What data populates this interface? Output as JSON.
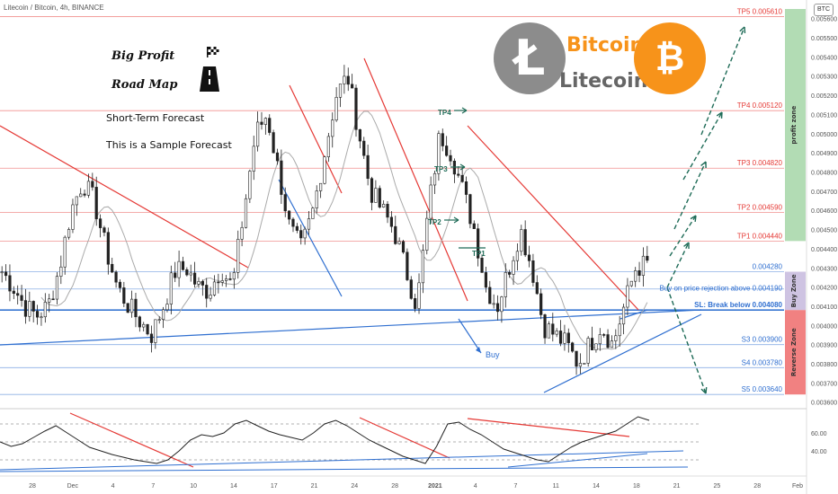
{
  "header": {
    "symbol_line": "Litecoin / Bitcoin, 4h, BINANCE",
    "badge": "BTC"
  },
  "callouts": {
    "title1": "Big Profit",
    "title2": "Road Map",
    "forecast": "Short-Term Forecast",
    "sample": "This is a Sample Forecast"
  },
  "brands": {
    "bitcoin": "Bitcoin",
    "litecoin": "Litecoin",
    "ltc_symbol": "Ł",
    "btc_symbol": "₿"
  },
  "colors": {
    "up": "#2a2a2a",
    "down": "#2a2a2a",
    "trend_red": "#e53935",
    "trend_blue": "#2f6fd0",
    "target_green": "#1e6b57",
    "profit_zone": "#a5d6a7",
    "buy_zone": "#c5b8dd",
    "reverse_zone": "#ef6b6b",
    "ma": "#aaaaaa"
  },
  "chart_data": [
    {
      "type": "candlestick",
      "title": "Litecoin / Bitcoin, 4h, BINANCE",
      "y_axis_ticks": [
        "0.005600",
        "0.005500",
        "0.005400",
        "0.005300",
        "0.005200",
        "0.005100",
        "0.005000",
        "0.004900",
        "0.004800",
        "0.004700",
        "0.004600",
        "0.004500",
        "0.004400",
        "0.004300",
        "0.004200",
        "0.004100",
        "0.004000",
        "0.003900",
        "0.003800",
        "0.003700",
        "0.003600"
      ],
      "ylim": [
        0.00358,
        0.00565
      ],
      "x_axis_ticks": [
        "28",
        "Dec",
        "4",
        "7",
        "10",
        "14",
        "17",
        "21",
        "24",
        "28",
        "2021",
        "4",
        "7",
        "11",
        "14",
        "18",
        "21",
        "25",
        "28",
        "Feb"
      ],
      "levels": [
        {
          "label": "TP5 0.005610",
          "value": 0.00561,
          "color": "#e53935"
        },
        {
          "label": "TP4 0.005120",
          "value": 0.00512,
          "color": "#e53935"
        },
        {
          "label": "TP3 0.004820",
          "value": 0.00482,
          "color": "#e53935"
        },
        {
          "label": "TP2 0.004590",
          "value": 0.00459,
          "color": "#e53935"
        },
        {
          "label": "TP1 0.004440",
          "value": 0.00444,
          "color": "#e53935"
        },
        {
          "label": "0.004280",
          "value": 0.00428,
          "color": "#2f6fd0"
        },
        {
          "label": "Buy on price rejection above 0.004190",
          "value": 0.00419,
          "color": "#2f6fd0"
        },
        {
          "label": "SL: Break below 0.004080",
          "value": 0.00408,
          "color": "#2f6fd0"
        },
        {
          "label": "S3 0.003900",
          "value": 0.0039,
          "color": "#2f6fd0"
        },
        {
          "label": "S4 0.003780",
          "value": 0.00378,
          "color": "#2f6fd0"
        },
        {
          "label": "S5 0.003640",
          "value": 0.00364,
          "color": "#2f6fd0"
        }
      ],
      "zones": [
        {
          "label": "profit zone",
          "from": 0.00444,
          "to": 0.00565,
          "color": "#a5d6a7"
        },
        {
          "label": "Buy Zone",
          "from": 0.00408,
          "to": 0.00428,
          "color": "#c5b8dd"
        },
        {
          "label": "Reverse Zone",
          "from": 0.00364,
          "to": 0.00408,
          "color": "#ef6b6b"
        }
      ],
      "annotations": [
        "TP4",
        "TP3",
        "TP2",
        "TP1",
        "Buy"
      ],
      "close_path": [
        0.00428,
        0.0042,
        0.0041,
        0.00405,
        0.0041,
        0.0043,
        0.0046,
        0.00475,
        0.00465,
        0.0044,
        0.0042,
        0.0041,
        0.00402,
        0.00395,
        0.0041,
        0.00428,
        0.0043,
        0.0042,
        0.00418,
        0.0043,
        0.0042,
        0.0046,
        0.005,
        0.0051,
        0.0048,
        0.0045,
        0.0044,
        0.0046,
        0.0049,
        0.0052,
        0.0053,
        0.005,
        0.0047,
        0.0046,
        0.0045,
        0.0043,
        0.0041,
        0.0046,
        0.005,
        0.0049,
        0.0047,
        0.0045,
        0.0042,
        0.0041,
        0.0043,
        0.0045,
        0.0043,
        0.004,
        0.00395,
        0.0039,
        0.0038,
        0.0039,
        0.004,
        0.0039,
        0.0041,
        0.0043,
        0.00432
      ]
    },
    {
      "type": "line",
      "title": "RSI",
      "y_axis_ticks": [
        "60.00",
        "40.00"
      ],
      "ylim": [
        20,
        85
      ],
      "values": [
        50,
        45,
        48,
        55,
        62,
        68,
        60,
        52,
        44,
        40,
        36,
        33,
        30,
        28,
        26,
        30,
        40,
        52,
        58,
        56,
        60,
        70,
        74,
        68,
        62,
        58,
        55,
        52,
        60,
        70,
        74,
        68,
        60,
        52,
        46,
        40,
        34,
        30,
        26,
        45,
        70,
        72,
        64,
        58,
        50,
        42,
        38,
        34,
        30,
        28,
        36,
        44,
        50,
        54,
        58,
        62,
        70,
        78,
        74
      ],
      "levels": [
        70,
        50,
        30
      ]
    }
  ]
}
